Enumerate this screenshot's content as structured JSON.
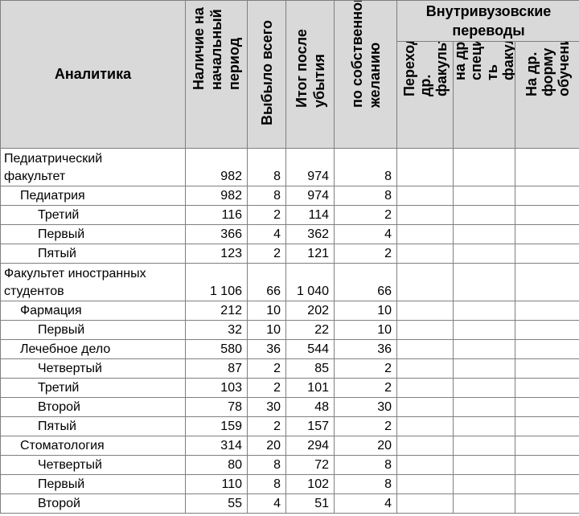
{
  "header": {
    "analytics": "Аналитика",
    "columns": [
      "Наличие на\nначальный\nпериод",
      "Выбыло всего",
      "Итог после\nубытия",
      "по собственному\nжеланию"
    ],
    "group_title": "Внутривузовские\nпереводы",
    "subcolumns": [
      "Переход на\nдр.\nфакультет",
      "на др.\nспециальнос\nть\nфакультета",
      "На др.\nформу\nобучения"
    ]
  },
  "rows": [
    {
      "name": "Педиатрический\nфакультет",
      "level": 0,
      "values": [
        "982",
        "8",
        "974",
        "8"
      ]
    },
    {
      "name": "Педиатрия",
      "level": 1,
      "values": [
        "982",
        "8",
        "974",
        "8"
      ]
    },
    {
      "name": "Третий",
      "level": 2,
      "values": [
        "116",
        "2",
        "114",
        "2"
      ]
    },
    {
      "name": "Первый",
      "level": 2,
      "values": [
        "366",
        "4",
        "362",
        "4"
      ]
    },
    {
      "name": "Пятый",
      "level": 2,
      "values": [
        "123",
        "2",
        "121",
        "2"
      ]
    },
    {
      "name": "Факультет иностранных\nстудентов",
      "level": 0,
      "values": [
        "1 106",
        "66",
        "1 040",
        "66"
      ]
    },
    {
      "name": "Фармация",
      "level": 1,
      "values": [
        "212",
        "10",
        "202",
        "10"
      ]
    },
    {
      "name": "Первый",
      "level": 2,
      "values": [
        "32",
        "10",
        "22",
        "10"
      ]
    },
    {
      "name": "Лечебное дело",
      "level": 1,
      "values": [
        "580",
        "36",
        "544",
        "36"
      ]
    },
    {
      "name": "Четвертый",
      "level": 2,
      "values": [
        "87",
        "2",
        "85",
        "2"
      ]
    },
    {
      "name": "Третий",
      "level": 2,
      "values": [
        "103",
        "2",
        "101",
        "2"
      ]
    },
    {
      "name": "Второй",
      "level": 2,
      "values": [
        "78",
        "30",
        "48",
        "30"
      ]
    },
    {
      "name": "Пятый",
      "level": 2,
      "values": [
        "159",
        "2",
        "157",
        "2"
      ]
    },
    {
      "name": "Стоматология",
      "level": 1,
      "values": [
        "314",
        "20",
        "294",
        "20"
      ]
    },
    {
      "name": "Четвертый",
      "level": 2,
      "values": [
        "80",
        "8",
        "72",
        "8"
      ]
    },
    {
      "name": "Первый",
      "level": 2,
      "values": [
        "110",
        "8",
        "102",
        "8"
      ]
    },
    {
      "name": "Второй",
      "level": 2,
      "values": [
        "55",
        "4",
        "51",
        "4"
      ]
    }
  ]
}
